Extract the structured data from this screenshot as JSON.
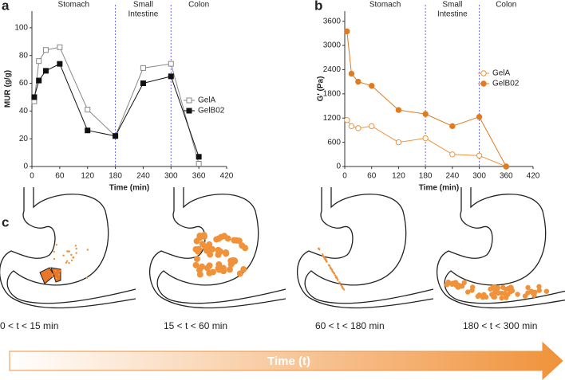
{
  "chart_data": [
    {
      "type": "line",
      "panel": "a",
      "xlabel": "Time (min)",
      "ylabel": "MUR (g/g)",
      "x": [
        5,
        15,
        30,
        60,
        120,
        180,
        240,
        300,
        360
      ],
      "series": [
        {
          "name": "GelA",
          "color": "#888888",
          "marker": "square",
          "filled": false,
          "values": [
            47,
            76,
            84,
            86,
            41,
            22,
            71,
            74,
            2
          ]
        },
        {
          "name": "GelB02",
          "color": "#111111",
          "marker": "square",
          "filled": true,
          "values": [
            50,
            62,
            69,
            74,
            26,
            22,
            60,
            65,
            7
          ]
        }
      ],
      "xlim": [
        0,
        420
      ],
      "xticks": [
        0,
        60,
        120,
        180,
        240,
        300,
        360,
        420
      ],
      "ylim": [
        0,
        112
      ],
      "yticks": [
        0,
        20,
        40,
        60,
        80,
        100
      ],
      "boundaries": [
        180,
        300
      ],
      "regions": [
        {
          "lines": [
            "Stomach"
          ]
        },
        {
          "lines": [
            "Small",
            "Intestine"
          ]
        },
        {
          "lines": [
            "Colon"
          ]
        }
      ],
      "legend": "right"
    },
    {
      "type": "line",
      "panel": "b",
      "xlabel": "Time (min)",
      "ylabel": "G' (Pa)",
      "x": [
        5,
        15,
        30,
        60,
        120,
        180,
        240,
        300,
        360
      ],
      "series": [
        {
          "name": "GelA",
          "color": "#f0923a",
          "marker": "circle",
          "filled": false,
          "values": [
            1150,
            1000,
            950,
            1000,
            600,
            700,
            300,
            270,
            0
          ]
        },
        {
          "name": "GelB02",
          "color": "#e07b20",
          "marker": "circle",
          "filled": true,
          "values": [
            3350,
            2300,
            2100,
            2000,
            1400,
            1300,
            1000,
            1230,
            0
          ]
        }
      ],
      "xlim": [
        0,
        420
      ],
      "xticks": [
        0,
        60,
        120,
        180,
        240,
        300,
        360,
        420
      ],
      "ylim": [
        0,
        3850
      ],
      "yticks": [
        0,
        600,
        1200,
        1800,
        2400,
        3000,
        3600
      ],
      "boundaries": [
        180,
        300
      ],
      "regions": [
        {
          "lines": [
            "Stomach"
          ]
        },
        {
          "lines": [
            "Small",
            "Intestine"
          ]
        },
        {
          "lines": [
            "Colon"
          ]
        }
      ],
      "legend": "upper right"
    }
  ],
  "panel_c": {
    "label": "c",
    "stages": [
      "0 < t < 15 min",
      "15 < t < 60 min",
      "60 < t < 180 min",
      "180 < t < 300 min"
    ],
    "arrow_label": "Time (t)"
  }
}
